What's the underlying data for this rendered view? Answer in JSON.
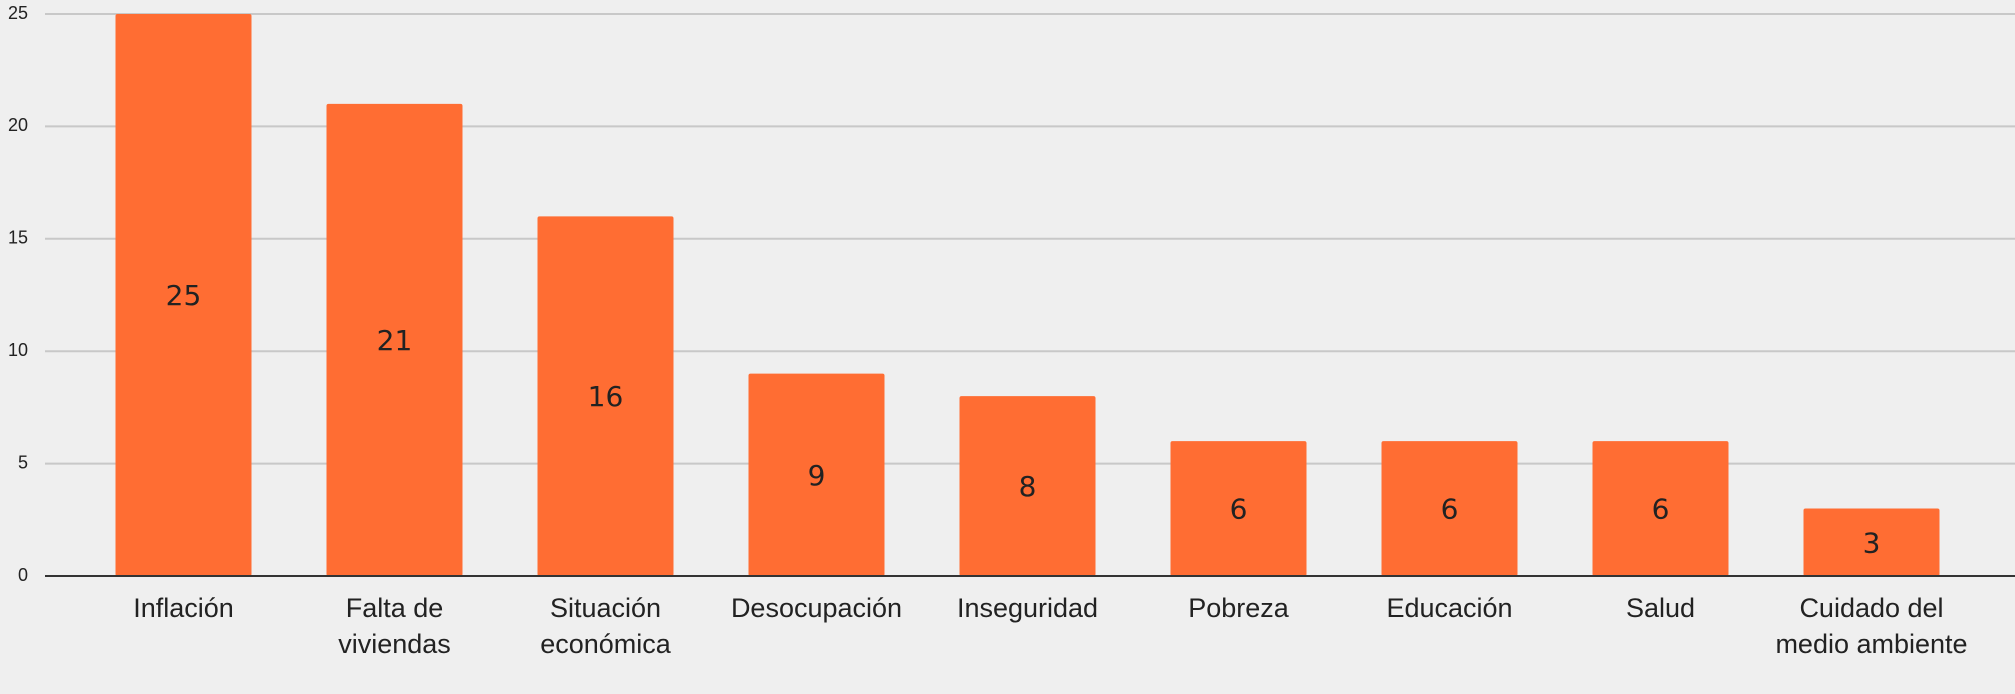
{
  "chart_data": {
    "type": "bar",
    "categories": [
      "Inflación",
      "Falta de viviendas",
      "Situación económica",
      "Desocupación",
      "Inseguridad",
      "Pobreza",
      "Educación",
      "Salud",
      "Cuidado del medio ambiente"
    ],
    "values": [
      25,
      21,
      16,
      9,
      8,
      6,
      6,
      6,
      3
    ],
    "color": "#ff6d33",
    "ylim": [
      0,
      25
    ],
    "yticks": [
      0,
      5,
      10,
      15,
      20,
      25
    ],
    "grid": true
  }
}
